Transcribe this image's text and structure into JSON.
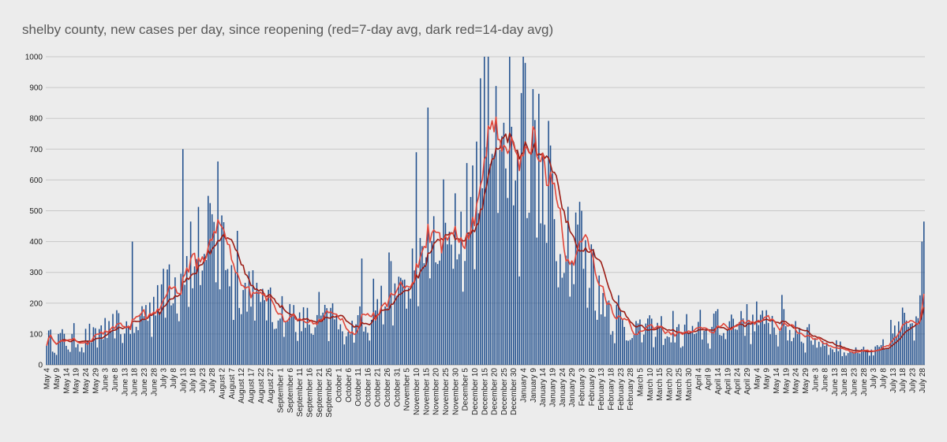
{
  "chart_data": {
    "type": "bar",
    "title": "shelby county, new cases per day, since reopening (red=7-day avg, dark red=14-day avg)",
    "xlabel": "",
    "ylabel": "",
    "ylim": [
      0,
      1000
    ],
    "yticks": [
      "0",
      "100",
      "200",
      "300",
      "400",
      "500",
      "600",
      "700",
      "800",
      "900",
      "1000"
    ],
    "grid": true,
    "legend": "none",
    "start_date": "2020-05-04",
    "end_date": "2021-07-29",
    "x_tick_labels": [
      "May 4",
      "May 9",
      "May 14",
      "May 19",
      "May 24",
      "May 29",
      "June 3",
      "June 8",
      "June 13",
      "June 18",
      "June 23",
      "June 28",
      "July 3",
      "July 8",
      "July 13",
      "July 18",
      "July 23",
      "July 28",
      "August 2",
      "August 7",
      "August 12",
      "August 17",
      "August 22",
      "August 27",
      "September 1",
      "September 6",
      "September 11",
      "September 16",
      "September 21",
      "September 26",
      "October 1",
      "October 6",
      "October 11",
      "October 16",
      "October 21",
      "October 26",
      "October 31",
      "November 5",
      "November 10",
      "November 15",
      "November 20",
      "November 25",
      "November 30",
      "December 5",
      "December 10",
      "December 15",
      "December 20",
      "December 25",
      "December 30",
      "January 4",
      "January 9",
      "January 14",
      "January 19",
      "January 24",
      "January 29",
      "February 3",
      "February 8",
      "February 13",
      "February 18",
      "February 23",
      "February 28",
      "March 5",
      "March 10",
      "March 15",
      "March 20",
      "March 25",
      "March 30",
      "April 4",
      "April 9",
      "April 14",
      "April 19",
      "April 24",
      "April 29",
      "May 4",
      "May 9",
      "May 14",
      "May 19",
      "May 24",
      "May 29",
      "June 3",
      "June 8",
      "June 13",
      "June 18",
      "June 23",
      "June 28",
      "July 3",
      "July 8",
      "July 13",
      "July 18",
      "July 23",
      "July 28"
    ],
    "trend_anchors": [
      [
        "2020-05-04",
        78
      ],
      [
        "2020-05-20",
        75
      ],
      [
        "2020-06-05",
        110
      ],
      [
        "2020-06-20",
        135
      ],
      [
        "2020-07-05",
        265
      ],
      [
        "2020-07-20",
        340
      ],
      [
        "2020-07-31",
        385
      ],
      [
        "2020-08-10",
        290
      ],
      [
        "2020-08-25",
        190
      ],
      [
        "2020-09-05",
        160
      ],
      [
        "2020-09-15",
        125
      ],
      [
        "2020-09-25",
        150
      ],
      [
        "2020-10-05",
        110
      ],
      [
        "2020-10-15",
        160
      ],
      [
        "2020-10-25",
        225
      ],
      [
        "2020-11-05",
        250
      ],
      [
        "2020-11-15",
        360
      ],
      [
        "2020-11-25",
        400
      ],
      [
        "2020-12-05",
        440
      ],
      [
        "2020-12-15",
        650
      ],
      [
        "2020-12-20",
        770
      ],
      [
        "2020-12-28",
        740
      ],
      [
        "2021-01-05",
        590
      ],
      [
        "2021-01-15",
        560
      ],
      [
        "2021-01-25",
        430
      ],
      [
        "2021-02-05",
        350
      ],
      [
        "2021-02-15",
        200
      ],
      [
        "2021-02-25",
        120
      ],
      [
        "2021-03-10",
        110
      ],
      [
        "2021-03-25",
        100
      ],
      [
        "2021-04-10",
        110
      ],
      [
        "2021-04-25",
        150
      ],
      [
        "2021-05-10",
        140
      ],
      [
        "2021-05-25",
        110
      ],
      [
        "2021-06-10",
        60
      ],
      [
        "2021-06-25",
        40
      ],
      [
        "2021-07-05",
        40
      ],
      [
        "2021-07-15",
        110
      ],
      [
        "2021-07-25",
        190
      ],
      [
        "2021-07-29",
        270
      ]
    ],
    "spikes": [
      [
        "2020-07-13",
        700
      ],
      [
        "2020-07-31",
        660
      ],
      [
        "2020-07-27",
        525
      ],
      [
        "2020-07-17",
        465
      ],
      [
        "2020-06-17",
        400
      ],
      [
        "2020-10-13",
        345
      ],
      [
        "2020-11-10",
        690
      ],
      [
        "2020-11-16",
        835
      ],
      [
        "2020-12-13",
        930
      ],
      [
        "2020-12-15",
        1000
      ],
      [
        "2020-12-17",
        1000
      ],
      [
        "2020-12-21",
        905
      ],
      [
        "2021-01-04",
        1000
      ],
      [
        "2021-01-05",
        980
      ],
      [
        "2021-01-09",
        895
      ],
      [
        "2021-02-03",
        500
      ],
      [
        "2021-07-29",
        465
      ],
      [
        "2021-07-28",
        400
      ]
    ],
    "series": [
      {
        "name": "",
        "kind": "bars",
        "color": "#1f4e8c"
      },
      {
        "name": "7-day avg",
        "kind": "line",
        "color": "#e0463a"
      },
      {
        "name": "14-day avg",
        "kind": "line",
        "color": "#9b1c14"
      }
    ]
  }
}
